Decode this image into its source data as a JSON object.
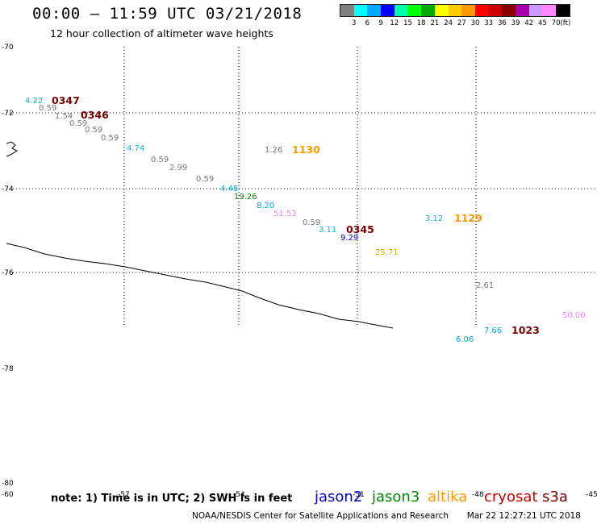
{
  "header": {
    "title": "00:00 – 11:59 UTC 03/21/2018",
    "subtitle": "12 hour collection of altimeter wave heights"
  },
  "color_scale": {
    "colors": [
      "#808080",
      "#00ffff",
      "#00aaff",
      "#0000ff",
      "#00ffaa",
      "#00ff00",
      "#00aa00",
      "#ffff00",
      "#ffcc00",
      "#ff9900",
      "#ff0000",
      "#cc0000",
      "#880000",
      "#aa00aa",
      "#cc99ff",
      "#ff88ff",
      "#000000"
    ],
    "labels": [
      "3",
      "6",
      "9",
      "12",
      "15",
      "18",
      "21",
      "24",
      "27",
      "30",
      "33",
      "36",
      "39",
      "42",
      "45",
      "70",
      "(ft)"
    ]
  },
  "axes": {
    "lat_labels": [
      "-70",
      "-72",
      "-74",
      "-76",
      "-78",
      "-80"
    ],
    "lon_labels": [
      "-60",
      "-57",
      "-54",
      "-51",
      "-48",
      "-45"
    ]
  },
  "observations": [
    {
      "text": "4.22",
      "color": "#00bbcc"
    },
    {
      "text": "0347",
      "color": "#7a0000",
      "bold": true
    },
    {
      "text": "0.59",
      "color": "#777777"
    },
    {
      "text": "1.54",
      "color": "#777777"
    },
    {
      "text": "0346",
      "color": "#7a0000",
      "bold": true
    },
    {
      "text": "0.59",
      "color": "#777777"
    },
    {
      "text": "0.59",
      "color": "#777777"
    },
    {
      "text": "0.59",
      "color": "#777777"
    },
    {
      "text": "4.74",
      "color": "#00bbcc"
    },
    {
      "text": "1.26",
      "color": "#777777"
    },
    {
      "text": "1130",
      "color": "#ff9900",
      "bold": true
    },
    {
      "text": "0.59",
      "color": "#777777"
    },
    {
      "text": "2.99",
      "color": "#777777"
    },
    {
      "text": "0.59",
      "color": "#777777"
    },
    {
      "text": "4.48",
      "color": "#00bbcc"
    },
    {
      "text": "19.26",
      "color": "#008800"
    },
    {
      "text": "8.20",
      "color": "#00aadd"
    },
    {
      "text": "51.53",
      "color": "#ee88ee"
    },
    {
      "text": "0.59",
      "color": "#777777"
    },
    {
      "text": "3.11",
      "color": "#00bbcc"
    },
    {
      "text": "0345",
      "color": "#7a0000",
      "bold": true
    },
    {
      "text": "9.29",
      "color": "#0000cc"
    },
    {
      "text": "25.71",
      "color": "#ddaa00"
    },
    {
      "text": "3.12",
      "color": "#00bbcc"
    },
    {
      "text": "1129",
      "color": "#ff9900",
      "bold": true
    },
    {
      "text": "2.61",
      "color": "#777777"
    },
    {
      "text": "50.00",
      "color": "#ee88ee"
    },
    {
      "text": "6.06",
      "color": "#00aadd"
    },
    {
      "text": "7.66",
      "color": "#00aadd"
    },
    {
      "text": "1023",
      "color": "#7a0000",
      "bold": true
    }
  ],
  "footer": {
    "note": "note: 1) Time is in UTC; 2) SWH is in feet",
    "credit": "NOAA/NESDIS Center for Satellite Applications and Research",
    "timestamp": "Mar 22 12:27:21 UTC 2018",
    "satellites": [
      {
        "name": "jason2",
        "color": "#0000cc"
      },
      {
        "name": "jason3",
        "color": "#008800"
      },
      {
        "name": "altika",
        "color": "#ff9900"
      },
      {
        "name": "cryosat",
        "color": "#cc0000"
      },
      {
        "name": "s3a",
        "color": "#7a0000"
      }
    ]
  }
}
